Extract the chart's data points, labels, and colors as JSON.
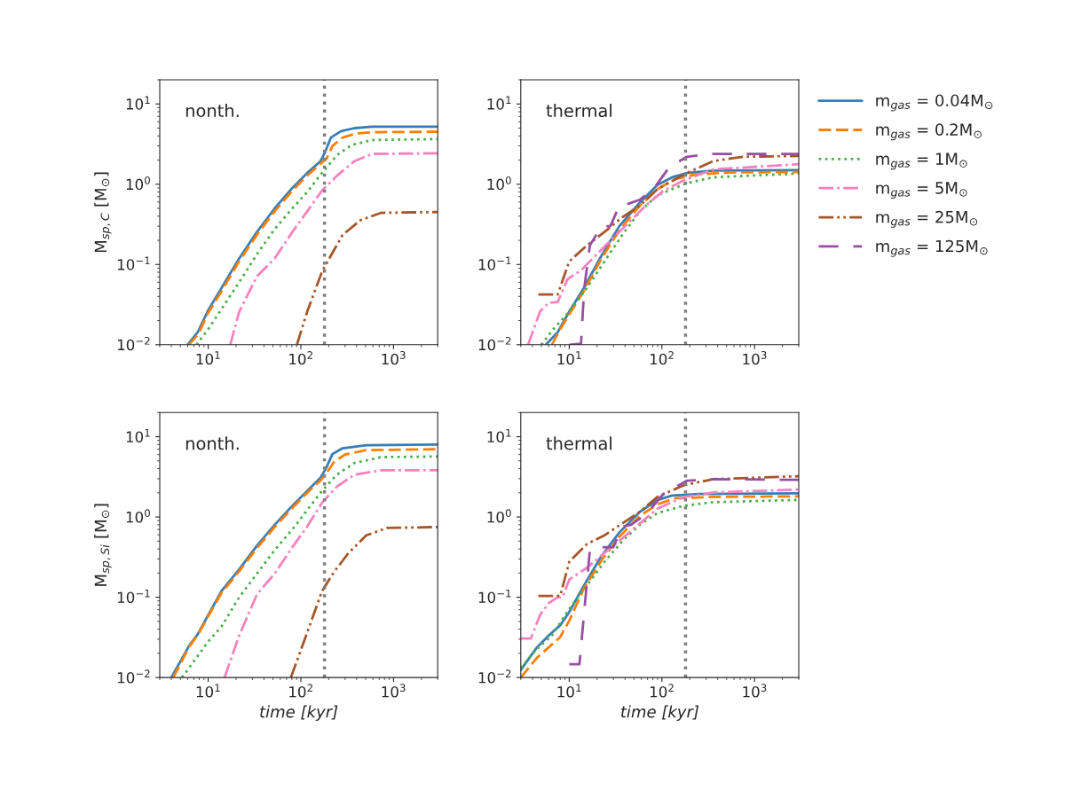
{
  "chart_data": [
    {
      "type": "line",
      "ylabel": "M$_{sp,C}$ [M$_{⊙}$]",
      "annotations": [
        "nonth."
      ],
      "log": "xy",
      "grid": false,
      "xlim": [
        3,
        3000
      ],
      "ylim": [
        0.01,
        20
      ],
      "xticks": [
        {
          "value": 10,
          "label": "10$^{1}$"
        },
        {
          "value": 100,
          "label": "10$^{2}$"
        },
        {
          "value": 1000,
          "label": "10$^{3}$"
        }
      ],
      "yticks": [
        {
          "value": 0.01,
          "label": "10$^{−2}$"
        },
        {
          "value": 0.1,
          "label": "10$^{−1}$"
        },
        {
          "value": 1,
          "label": "10$^{0}$"
        },
        {
          "value": 10,
          "label": "10$^{1}$"
        }
      ],
      "ref_lines": [
        {
          "axis": "x",
          "value": 180,
          "color": "#808080",
          "line_style": "dotted"
        }
      ],
      "series": [
        {
          "color": "#377eb8",
          "line_style": "solid",
          "x": [
            6.0,
            7.7,
            10,
            13.9,
            21.6,
            33.6,
            52.2,
            81,
            117,
            163,
            182,
            211,
            272,
            379,
            589,
            3000
          ],
          "values": [
            0.01,
            0.0143,
            0.0269,
            0.0508,
            0.119,
            0.254,
            0.5,
            0.9,
            1.38,
            1.94,
            2.49,
            3.81,
            4.59,
            5.0,
            5.21,
            5.2
          ]
        },
        {
          "color": "#ff7f00",
          "line_style": "dashed",
          "x": [
            6.2,
            7.8,
            10,
            14,
            21.6,
            33.6,
            52,
            81,
            117,
            163,
            190,
            220,
            280,
            400,
            600,
            3000
          ],
          "values": [
            0.01,
            0.0135,
            0.025,
            0.047,
            0.11,
            0.235,
            0.46,
            0.83,
            1.28,
            1.8,
            2.1,
            3.0,
            3.8,
            4.3,
            4.45,
            4.5
          ]
        },
        {
          "color": "#4daf4a",
          "line_style": "dotted",
          "x": [
            7.45,
            10,
            21.6,
            33.6,
            52.2,
            81,
            117,
            169,
            244,
            352,
            589,
            3000
          ],
          "values": [
            0.01,
            0.0156,
            0.06,
            0.134,
            0.276,
            0.5,
            0.8,
            1.38,
            2.29,
            3.08,
            3.56,
            3.65
          ]
        },
        {
          "color": "#f781bf",
          "line_style": "dashdot",
          "x": [
            17.3,
            21.6,
            33.6,
            52.2,
            81,
            117,
            169,
            244,
            379,
            589,
            3000
          ],
          "values": [
            0.01,
            0.0258,
            0.0713,
            0.119,
            0.254,
            0.459,
            0.83,
            1.27,
            1.94,
            2.39,
            2.43
          ]
        },
        {
          "color": "#a65628",
          "line_style": "dashdotdot",
          "x": [
            90.6,
            117,
            169,
            211,
            282,
            440,
            735,
            3000
          ],
          "values": [
            0.01,
            0.0258,
            0.081,
            0.129,
            0.233,
            0.356,
            0.44,
            0.45
          ]
        }
      ]
    },
    {
      "type": "line",
      "annotations": [
        "thermal"
      ],
      "log": "xy",
      "grid": false,
      "legend": "top right",
      "xlim": [
        3,
        3000
      ],
      "ylim": [
        0.01,
        20
      ],
      "xticks": [
        {
          "value": 10,
          "label": "10$^{1}$"
        },
        {
          "value": 100,
          "label": "10$^{2}$"
        },
        {
          "value": 1000,
          "label": "10$^{3}$"
        }
      ],
      "yticks": [
        {
          "value": 0.01,
          "label": "10$^{−2}$"
        },
        {
          "value": 0.1,
          "label": "10$^{−1}$"
        },
        {
          "value": 1,
          "label": "10$^{0}$"
        },
        {
          "value": 10,
          "label": "10$^{1}$"
        }
      ],
      "ref_lines": [
        {
          "axis": "x",
          "value": 180,
          "color": "#808080",
          "line_style": "dotted"
        }
      ],
      "series": [
        {
          "name": "m$_{gas}$ = 0.04M$_{⊙}$",
          "color": "#377eb8",
          "line_style": "solid",
          "x": [
            5.6,
            7.5,
            10,
            14.4,
            22.3,
            34.7,
            57.8,
            89.6,
            129,
            186,
            359,
            3000
          ],
          "values": [
            0.01,
            0.0143,
            0.0258,
            0.051,
            0.129,
            0.3,
            0.59,
            0.98,
            1.22,
            1.38,
            1.48,
            1.5
          ]
        },
        {
          "name": "m$_{gas}$ = 0.2M$_{⊙}$",
          "color": "#ff7f00",
          "line_style": "dashed",
          "x": [
            6.5,
            8.0,
            10,
            14.4,
            22.3,
            34.7,
            57.8,
            89.6,
            139,
            232,
            518,
            3000
          ],
          "values": [
            0.01,
            0.0156,
            0.024,
            0.0467,
            0.119,
            0.265,
            0.54,
            0.87,
            1.16,
            1.32,
            1.4,
            1.42
          ]
        },
        {
          "name": "m$_{gas}$ = 1M$_{⊙}$",
          "color": "#4daf4a",
          "line_style": "dotted",
          "x": [
            5.0,
            6.5,
            10,
            15.5,
            24.0,
            37.3,
            57.8,
            89.6,
            139,
            186,
            359,
            3000
          ],
          "values": [
            0.01,
            0.0149,
            0.0258,
            0.051,
            0.109,
            0.233,
            0.459,
            0.73,
            0.9,
            1.03,
            1.22,
            1.36
          ]
        },
        {
          "name": "m$_{gas}$ = 5M$_{⊙}$",
          "color": "#f781bf",
          "line_style": "dashdot",
          "x": [
            3.6,
            4.83,
            6.0,
            7.5,
            9.6,
            13.4,
            17.9,
            27.8,
            43.1,
            66.8,
            104,
            173,
            359,
            3000
          ],
          "values": [
            0.01,
            0.0258,
            0.0333,
            0.034,
            0.0655,
            0.0844,
            0.119,
            0.197,
            0.327,
            0.54,
            0.83,
            1.12,
            1.53,
            1.78
          ]
        },
        {
          "name": "m$_{gas}$ = 25M$_{⊙}$",
          "color": "#a65628",
          "line_style": "dashdotdot",
          "x": [
            4.64,
            7.5,
            10,
            15.5,
            24.0,
            37.3,
            57.8,
            89.6,
            186,
            359,
            746,
            3000
          ],
          "values": [
            0.0422,
            0.0422,
            0.109,
            0.173,
            0.254,
            0.387,
            0.54,
            0.87,
            1.38,
            1.94,
            2.2,
            2.25
          ]
        },
        {
          "name": "m$_{gas}$ = 125M$_{⊙}$",
          "color": "#984ea3",
          "line_style": "longdash",
          "x": [
            10,
            13.4,
            14.5,
            16.7,
            22.3,
            27.8,
            34.7,
            43.1,
            57.8,
            83,
            120,
            186,
            359,
            3000
          ],
          "values": [
            0.01,
            0.0103,
            0.05,
            0.173,
            0.3,
            0.3,
            0.54,
            0.57,
            0.64,
            0.9,
            1.63,
            2.2,
            2.39,
            2.39
          ]
        }
      ]
    },
    {
      "type": "line",
      "xlabel": "time [kyr]",
      "ylabel": "M$_{sp,Si}$ [M$_{⊙}$]",
      "annotations": [
        "nonth."
      ],
      "log": "xy",
      "grid": false,
      "xlim": [
        3,
        3000
      ],
      "ylim": [
        0.01,
        20
      ],
      "xticks": [
        {
          "value": 10,
          "label": "10$^{1}$"
        },
        {
          "value": 100,
          "label": "10$^{2}$"
        },
        {
          "value": 1000,
          "label": "10$^{3}$"
        }
      ],
      "yticks": [
        {
          "value": 0.01,
          "label": "10$^{−2}$"
        },
        {
          "value": 0.1,
          "label": "10$^{−1}$"
        },
        {
          "value": 1,
          "label": "10$^{0}$"
        },
        {
          "value": 10,
          "label": "10$^{1}$"
        }
      ],
      "ref_lines": [
        {
          "axis": "x",
          "value": 180,
          "color": "#808080",
          "line_style": "dotted"
        }
      ],
      "series": [
        {
          "color": "#377eb8",
          "line_style": "solid",
          "x": [
            4.0,
            6.2,
            7.73,
            10,
            13.9,
            21.6,
            33.6,
            52.2,
            81,
            117,
            163,
            189,
            219,
            282,
            509,
            3000
          ],
          "values": [
            0.01,
            0.0247,
            0.0347,
            0.06,
            0.119,
            0.223,
            0.44,
            0.8,
            1.38,
            2.11,
            3.08,
            4.15,
            6.07,
            7.19,
            7.82,
            8.0
          ]
        },
        {
          "color": "#ff7f00",
          "line_style": "dashed",
          "x": [
            4.2,
            6.2,
            7.73,
            10,
            13.9,
            21.6,
            33.6,
            52.2,
            81,
            117,
            163,
            189,
            230,
            300,
            509,
            3000
          ],
          "values": [
            0.01,
            0.024,
            0.034,
            0.058,
            0.113,
            0.21,
            0.41,
            0.75,
            1.3,
            2.0,
            2.85,
            3.5,
            4.9,
            6.0,
            6.8,
            7.0
          ]
        },
        {
          "color": "#4daf4a",
          "line_style": "dotted",
          "x": [
            5.2,
            6.2,
            10,
            13.9,
            21.6,
            33.6,
            52.2,
            81,
            117,
            169,
            244,
            379,
            735,
            3000
          ],
          "values": [
            0.01,
            0.0131,
            0.0281,
            0.0429,
            0.1,
            0.197,
            0.387,
            0.7,
            1.22,
            2.11,
            3.36,
            4.71,
            5.57,
            5.67
          ]
        },
        {
          "color": "#f781bf",
          "line_style": "dashdot",
          "x": [
            15.0,
            21.6,
            33.6,
            52.2,
            81,
            117,
            169,
            244,
            379,
            735,
            3000
          ],
          "values": [
            0.01,
            0.0333,
            0.109,
            0.197,
            0.42,
            0.76,
            1.5,
            2.39,
            3.36,
            3.81,
            3.81
          ]
        },
        {
          "color": "#a65628",
          "line_style": "dashdotdot",
          "x": [
            78,
            117,
            169,
            227,
            327,
            509,
            851,
            3000
          ],
          "values": [
            0.01,
            0.0362,
            0.119,
            0.205,
            0.356,
            0.59,
            0.73,
            0.75
          ]
        }
      ]
    },
    {
      "type": "line",
      "xlabel": "time [kyr]",
      "annotations": [
        "thermal"
      ],
      "log": "xy",
      "grid": false,
      "xlim": [
        3,
        3000
      ],
      "ylim": [
        0.01,
        20
      ],
      "xticks": [
        {
          "value": 10,
          "label": "10$^{1}$"
        },
        {
          "value": 100,
          "label": "10$^{2}$"
        },
        {
          "value": 1000,
          "label": "10$^{3}$"
        }
      ],
      "yticks": [
        {
          "value": 0.01,
          "label": "10$^{−2}$"
        },
        {
          "value": 0.1,
          "label": "10$^{−1}$"
        },
        {
          "value": 1,
          "label": "10$^{0}$"
        },
        {
          "value": 10,
          "label": "10$^{1}$"
        }
      ],
      "ref_lines": [
        {
          "axis": "x",
          "value": 180,
          "color": "#808080",
          "line_style": "dotted"
        }
      ],
      "series": [
        {
          "color": "#377eb8",
          "line_style": "solid",
          "x": [
            3.0,
            4.48,
            6.0,
            8.0,
            10,
            14.4,
            22.3,
            34.7,
            57.8,
            89.6,
            129,
            250,
            3000
          ],
          "values": [
            0.0124,
            0.0237,
            0.0333,
            0.0448,
            0.0655,
            0.14,
            0.327,
            0.64,
            1.16,
            1.63,
            1.85,
            1.94,
            1.97
          ]
        },
        {
          "color": "#ff7f00",
          "line_style": "dashed",
          "x": [
            3.0,
            4.48,
            6.5,
            8.0,
            10,
            14.4,
            22.3,
            34.7,
            57.8,
            89.6,
            139,
            359,
            3000
          ],
          "values": [
            0.01,
            0.0176,
            0.0258,
            0.0319,
            0.051,
            0.129,
            0.288,
            0.567,
            1.03,
            1.44,
            1.71,
            1.78,
            1.81
          ]
        },
        {
          "color": "#4daf4a",
          "line_style": "dotted",
          "x": [
            3.0,
            4.48,
            6.5,
            10,
            15.5,
            24,
            37.3,
            57.8,
            89.6,
            173,
            359,
            3000
          ],
          "values": [
            0.0131,
            0.0228,
            0.0333,
            0.0713,
            0.14,
            0.276,
            0.5,
            0.8,
            1.12,
            1.38,
            1.53,
            1.63
          ]
        },
        {
          "color": "#f781bf",
          "line_style": "dashdot",
          "x": [
            3.0,
            3.86,
            4.83,
            6.0,
            7.5,
            8.5,
            10,
            15.5,
            24,
            37.3,
            57.8,
            89.6,
            173,
            359,
            3000
          ],
          "values": [
            0.0306,
            0.0306,
            0.06,
            0.0844,
            0.1,
            0.1,
            0.166,
            0.233,
            0.356,
            0.54,
            0.83,
            1.27,
            1.78,
            2.02,
            2.2
          ]
        },
        {
          "color": "#a65628",
          "line_style": "dashdotdot",
          "x": [
            4.64,
            8.0,
            10,
            15.5,
            24,
            37.3,
            57.8,
            89.6,
            173,
            359,
            3000
          ],
          "values": [
            0.104,
            0.104,
            0.276,
            0.459,
            0.59,
            0.83,
            1.16,
            1.78,
            2.49,
            2.96,
            3.22
          ]
        },
        {
          "color": "#984ea3",
          "line_style": "longdash",
          "x": [
            10,
            12.9,
            14.4,
            16.7,
            22.3,
            29.9,
            37.3,
            46.4,
            66.8,
            104,
            186,
            359,
            3000
          ],
          "values": [
            0.0146,
            0.0146,
            0.06,
            0.387,
            0.42,
            0.42,
            0.76,
            0.8,
            1.07,
            1.94,
            2.83,
            2.96,
            2.9
          ]
        }
      ]
    }
  ]
}
